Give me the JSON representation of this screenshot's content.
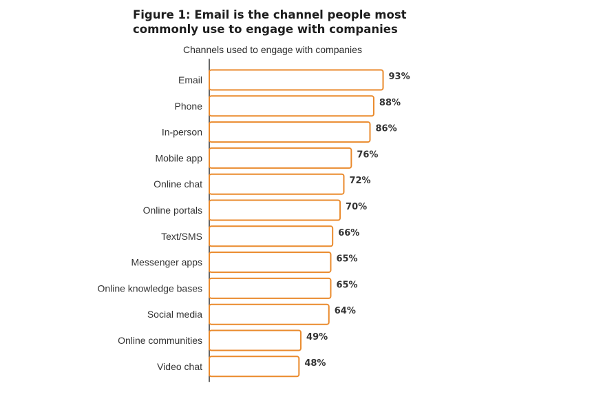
{
  "chart_data": {
    "type": "bar",
    "orientation": "horizontal",
    "title_line1": "Figure 1: Email is the channel people most",
    "title_line2": "commonly use to engage with companies",
    "subtitle": "Channels used to engage with companies",
    "categories": [
      "Email",
      "Phone",
      "In-person",
      "Mobile app",
      "Online chat",
      "Online portals",
      "Text/SMS",
      "Messenger apps",
      "Online knowledge bases",
      "Social media",
      "Online communities",
      "Video chat"
    ],
    "values": [
      93,
      88,
      86,
      76,
      72,
      70,
      66,
      65,
      65,
      64,
      49,
      48
    ],
    "value_labels": [
      "93%",
      "88%",
      "86%",
      "76%",
      "72%",
      "70%",
      "66%",
      "65%",
      "65%",
      "64%",
      "49%",
      "48%"
    ],
    "unit": "%",
    "xlim": [
      0,
      100
    ],
    "grid": false,
    "legend": "none",
    "bar_color": "#ea8a2c"
  }
}
